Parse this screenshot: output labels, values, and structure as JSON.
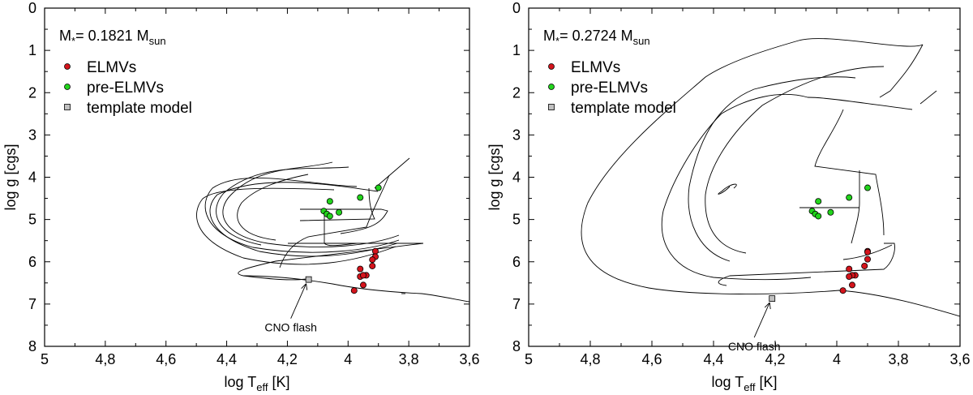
{
  "chart_data": [
    {
      "type": "scatter",
      "title_main": "M",
      "title_sub": "*",
      "title_mid": "= 0.1821 M",
      "title_tail": "sun",
      "xlabel_main": "log T",
      "xlabel_sub": "eff",
      "xlabel_tail": " [K]",
      "ylabel": "log g [cgs]",
      "xlim": [
        5.0,
        3.6
      ],
      "ylim": [
        0,
        8
      ],
      "xticks": [
        5.0,
        4.8,
        4.6,
        4.4,
        4.2,
        4.0,
        3.8,
        3.6
      ],
      "xtick_labels": [
        "5",
        "4,8",
        "4,6",
        "4,4",
        "4,2",
        "4",
        "3,8",
        "3,6"
      ],
      "yticks": [
        0,
        1,
        2,
        3,
        4,
        5,
        6,
        7,
        8
      ],
      "ytick_labels": [
        "0",
        "1",
        "2",
        "3",
        "4",
        "5",
        "6",
        "7",
        "8"
      ],
      "legend": [
        {
          "label": "ELMVs",
          "color": "#d4141c",
          "marker": "circle"
        },
        {
          "label": "pre-ELMVs",
          "color": "#22d41c",
          "marker": "circle"
        },
        {
          "label": "template model",
          "color": "#c0c0c0",
          "marker": "square"
        }
      ],
      "annotation": {
        "text": "CNO flash",
        "x": 4.13,
        "y": 6.42
      },
      "series": [
        {
          "name": "ELMVs",
          "color": "#d4141c",
          "x": [
            3.91,
            3.91,
            3.92,
            3.92,
            3.96,
            3.94,
            3.96,
            3.95,
            3.95,
            3.98
          ],
          "y": [
            5.75,
            5.88,
            5.95,
            6.1,
            6.17,
            6.32,
            6.35,
            6.32,
            6.55,
            6.68
          ]
        },
        {
          "name": "pre-ELMVs",
          "color": "#22d41c",
          "x": [
            3.9,
            3.96,
            4.06,
            4.03,
            4.08,
            4.07,
            4.06
          ],
          "y": [
            4.25,
            4.48,
            4.57,
            4.83,
            4.8,
            4.87,
            4.92
          ]
        },
        {
          "name": "template model",
          "color": "#c0c0c0",
          "x": [
            4.13
          ],
          "y": [
            6.42
          ]
        }
      ]
    },
    {
      "type": "scatter",
      "title_main": "M",
      "title_sub": "*",
      "title_mid": "= 0.2724 M",
      "title_tail": "sun",
      "xlabel_main": "log T",
      "xlabel_sub": "eff",
      "xlabel_tail": " [K]",
      "ylabel": "log g [cgs]",
      "xlim": [
        5.0,
        3.6
      ],
      "ylim": [
        0,
        8
      ],
      "xticks": [
        5.0,
        4.8,
        4.6,
        4.4,
        4.2,
        4.0,
        3.8,
        3.6
      ],
      "xtick_labels": [
        "5",
        "4,8",
        "4,6",
        "4,4",
        "4,2",
        "4",
        "3,8",
        "3,6"
      ],
      "yticks": [
        0,
        1,
        2,
        3,
        4,
        5,
        6,
        7,
        8
      ],
      "ytick_labels": [
        "0",
        "1",
        "2",
        "3",
        "4",
        "5",
        "6",
        "7",
        "8"
      ],
      "legend": [
        {
          "label": "ELMVs",
          "color": "#d4141c",
          "marker": "circle"
        },
        {
          "label": "pre-ELMVs",
          "color": "#22d41c",
          "marker": "circle"
        },
        {
          "label": "template model",
          "color": "#c0c0c0",
          "marker": "square"
        }
      ],
      "annotation": {
        "text": "CNO flash",
        "x": 4.21,
        "y": 6.87
      },
      "series": [
        {
          "name": "ELMVs",
          "color": "#d4141c",
          "x": [
            3.9,
            3.9,
            3.9,
            3.91,
            3.94,
            3.95,
            3.96,
            3.96,
            3.95,
            3.98
          ],
          "y": [
            5.75,
            5.77,
            5.94,
            6.1,
            6.32,
            6.32,
            6.17,
            6.35,
            6.55,
            6.68
          ]
        },
        {
          "name": "pre-ELMVs",
          "color": "#22d41c",
          "x": [
            3.9,
            3.96,
            4.06,
            4.02,
            4.08,
            4.07,
            4.06
          ],
          "y": [
            4.25,
            4.48,
            4.57,
            4.83,
            4.8,
            4.87,
            4.92
          ]
        },
        {
          "name": "template model",
          "color": "#c0c0c0",
          "x": [
            4.21
          ],
          "y": [
            6.87
          ]
        }
      ]
    }
  ]
}
